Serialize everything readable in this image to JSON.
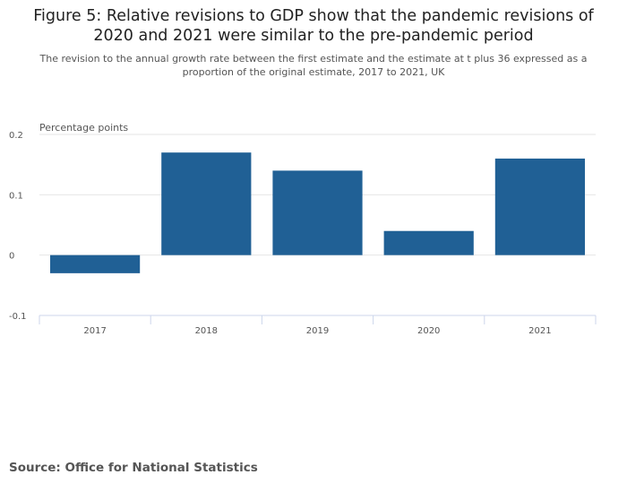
{
  "chart_data": {
    "type": "bar",
    "title": "Figure 5: Relative revisions to GDP show that the pandemic revisions of 2020 and 2021 were similar to the pre-pandemic period",
    "subtitle": "The revision to the annual growth rate between the first estimate and the estimate at t plus 36 expressed as a proportion of the original estimate, 2017 to 2021, UK",
    "ylabel": "Percentage points",
    "xlabel": "",
    "categories": [
      "2017",
      "2018",
      "2019",
      "2020",
      "2021"
    ],
    "values": [
      -0.03,
      0.17,
      0.14,
      0.04,
      0.16
    ],
    "ylim": [
      -0.1,
      0.2
    ],
    "yticks": [
      0.2,
      0.1,
      0,
      -0.1
    ],
    "ytick_labels": [
      "0.2",
      "0.1",
      "0",
      "-0.1"
    ],
    "grid": true,
    "bar_color": "#206095"
  },
  "source": "Source: Office for National Statistics"
}
